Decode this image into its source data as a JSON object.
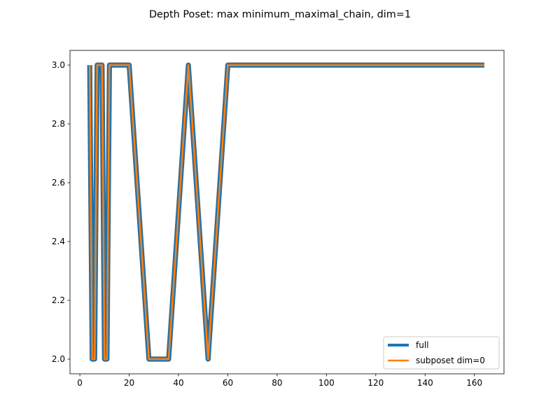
{
  "chart_data": {
    "type": "line",
    "title": "Depth Poset: max minimum_maximal_chain, dim=1",
    "xlabel": "",
    "ylabel": "",
    "xlim": [
      -4,
      172
    ],
    "ylim": [
      1.95,
      3.05
    ],
    "xticks": [
      0,
      20,
      40,
      60,
      80,
      100,
      120,
      140,
      160
    ],
    "yticks": [
      2.0,
      2.2,
      2.4,
      2.6,
      2.8,
      3.0
    ],
    "ytick_labels": [
      "2.0",
      "2.2",
      "2.4",
      "2.6",
      "2.8",
      "3.0"
    ],
    "grid": false,
    "legend_position": "lower right",
    "series": [
      {
        "name": "full",
        "color": "#1f77b4",
        "x": [
          4,
          5,
          6,
          7,
          8,
          9,
          10,
          11,
          12,
          20,
          28,
          36,
          44,
          52,
          60,
          164
        ],
        "y": [
          3,
          2,
          2,
          3,
          3,
          3,
          2,
          2,
          3,
          3,
          2,
          2,
          3,
          2,
          3,
          3
        ]
      },
      {
        "name": "subposet dim=0",
        "color": "#ff7f0e",
        "x": [
          4,
          5,
          6,
          7,
          8,
          9,
          10,
          11,
          12,
          20,
          28,
          36,
          44,
          52,
          60,
          164
        ],
        "y": [
          3,
          2,
          2,
          3,
          3,
          3,
          2,
          2,
          3,
          3,
          2,
          2,
          3,
          2,
          3,
          3
        ]
      }
    ]
  }
}
